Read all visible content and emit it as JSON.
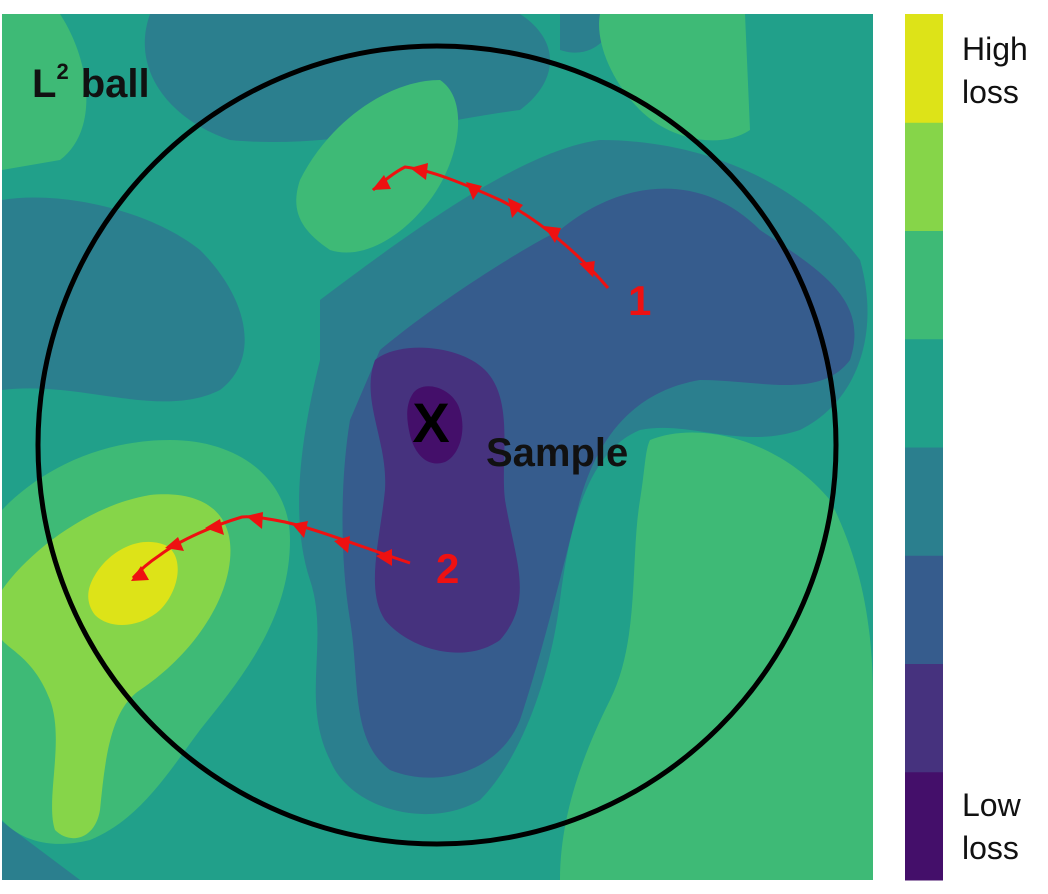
{
  "diagram": {
    "ball_label": {
      "main": "L",
      "superscript": "2",
      "suffix": "ball"
    },
    "sample": {
      "marker": "X",
      "label": "Sample"
    },
    "paths": [
      {
        "label": "1",
        "color": "#ee1111"
      },
      {
        "label": "2",
        "color": "#ee1111"
      }
    ],
    "colorbar": {
      "top_label_line1": "High",
      "top_label_line2": "loss",
      "bottom_label_line1": "Low",
      "bottom_label_line2": "loss",
      "levels_low_to_high": [
        "#440f6a",
        "#46327e",
        "#365c8d",
        "#2b7f8e",
        "#21a08a",
        "#3eba76",
        "#86d549",
        "#dde318"
      ]
    },
    "circle_color": "#000000"
  }
}
